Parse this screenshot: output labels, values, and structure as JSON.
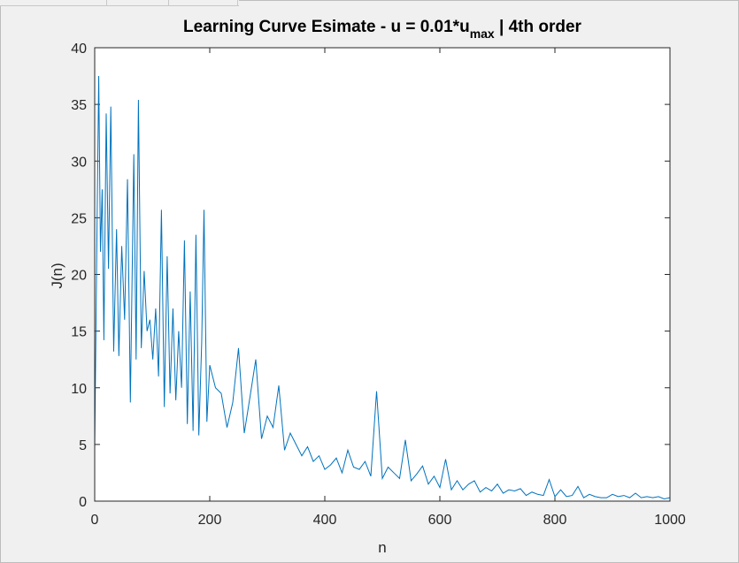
{
  "chart_data": {
    "type": "line",
    "title": "Learning Curve Esimate - u = 0.01*u",
    "title_subscript": "max",
    "title_suffix": " | 4th order",
    "xlabel": "n",
    "ylabel": "J(n)",
    "xlim": [
      0,
      1000
    ],
    "ylim": [
      0,
      40
    ],
    "xticks": [
      0,
      200,
      400,
      600,
      800,
      1000
    ],
    "yticks": [
      0,
      5,
      10,
      15,
      20,
      25,
      30,
      35,
      40
    ],
    "grid": false,
    "legend": "none",
    "line_color": "#0072BD",
    "series": [
      {
        "x": [
          0,
          4,
          7,
          10,
          13,
          16,
          20,
          24,
          28,
          33,
          38,
          42,
          47,
          52,
          57,
          62,
          68,
          72,
          76,
          81,
          86,
          91,
          96,
          101,
          106,
          111,
          116,
          121,
          126,
          131,
          136,
          141,
          146,
          151,
          156,
          161,
          166,
          171,
          176,
          181,
          186,
          190,
          195,
          200,
          210,
          220,
          230,
          240,
          250,
          260,
          270,
          280,
          290,
          300,
          310,
          320,
          330,
          340,
          350,
          360,
          370,
          380,
          390,
          400,
          410,
          420,
          430,
          440,
          450,
          460,
          470,
          480,
          490,
          500,
          510,
          520,
          530,
          540,
          550,
          560,
          570,
          580,
          590,
          600,
          610,
          620,
          630,
          640,
          650,
          660,
          670,
          680,
          690,
          700,
          710,
          720,
          730,
          740,
          750,
          760,
          770,
          780,
          790,
          800,
          810,
          820,
          830,
          840,
          850,
          860,
          870,
          880,
          890,
          900,
          910,
          920,
          930,
          940,
          950,
          960,
          970,
          980,
          990,
          1000
        ],
        "y": [
          4.5,
          24.0,
          37.5,
          22.0,
          27.5,
          14.2,
          34.2,
          20.5,
          34.8,
          13.2,
          24.0,
          12.8,
          22.5,
          16.0,
          28.4,
          8.7,
          30.6,
          12.5,
          35.4,
          13.5,
          20.3,
          15.0,
          16.0,
          12.5,
          17.0,
          11.0,
          25.7,
          8.3,
          21.6,
          9.5,
          17.0,
          8.9,
          15.0,
          10.0,
          23.0,
          6.8,
          18.5,
          6.2,
          23.5,
          5.8,
          14.0,
          25.7,
          7.0,
          12.0,
          10.0,
          9.5,
          6.5,
          8.7,
          13.5,
          6.0,
          9.2,
          12.5,
          5.5,
          7.5,
          6.5,
          10.2,
          4.5,
          6.0,
          5.0,
          4.0,
          4.8,
          3.5,
          4.0,
          2.8,
          3.2,
          3.8,
          2.5,
          4.5,
          3.0,
          2.8,
          3.5,
          2.2,
          9.7,
          2.0,
          3.0,
          2.5,
          2.0,
          5.4,
          1.8,
          2.4,
          3.1,
          1.5,
          2.2,
          1.2,
          3.7,
          1.0,
          1.8,
          1.0,
          1.5,
          1.8,
          0.8,
          1.2,
          0.9,
          1.5,
          0.7,
          1.0,
          0.9,
          1.1,
          0.5,
          0.8,
          0.6,
          0.5,
          1.9,
          0.4,
          1.0,
          0.4,
          0.5,
          1.3,
          0.3,
          0.6,
          0.4,
          0.3,
          0.3,
          0.6,
          0.4,
          0.5,
          0.3,
          0.7,
          0.3,
          0.4,
          0.3,
          0.4,
          0.2,
          0.3
        ]
      }
    ]
  }
}
